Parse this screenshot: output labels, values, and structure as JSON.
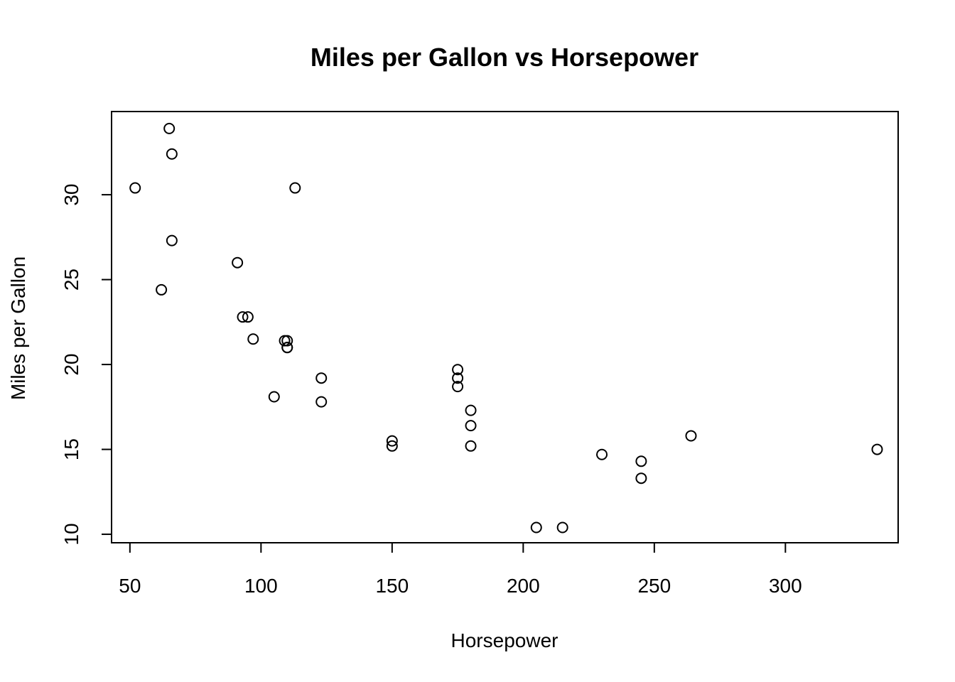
{
  "chart_data": {
    "type": "scatter",
    "title": "Miles per Gallon vs Horsepower",
    "xlabel": "Horsepower",
    "ylabel": "Miles per Gallon",
    "xlim": [
      43,
      343
    ],
    "ylim": [
      9.5,
      34.9
    ],
    "x_ticks": [
      50,
      100,
      150,
      200,
      250,
      300
    ],
    "y_ticks": [
      10,
      15,
      20,
      25,
      30
    ],
    "grid": false,
    "legend": "none",
    "points": [
      {
        "x": 110,
        "y": 21.0
      },
      {
        "x": 110,
        "y": 21.0
      },
      {
        "x": 93,
        "y": 22.8
      },
      {
        "x": 110,
        "y": 21.4
      },
      {
        "x": 175,
        "y": 18.7
      },
      {
        "x": 105,
        "y": 18.1
      },
      {
        "x": 245,
        "y": 14.3
      },
      {
        "x": 62,
        "y": 24.4
      },
      {
        "x": 95,
        "y": 22.8
      },
      {
        "x": 123,
        "y": 19.2
      },
      {
        "x": 123,
        "y": 17.8
      },
      {
        "x": 180,
        "y": 16.4
      },
      {
        "x": 180,
        "y": 17.3
      },
      {
        "x": 180,
        "y": 15.2
      },
      {
        "x": 205,
        "y": 10.4
      },
      {
        "x": 215,
        "y": 10.4
      },
      {
        "x": 230,
        "y": 14.7
      },
      {
        "x": 66,
        "y": 32.4
      },
      {
        "x": 52,
        "y": 30.4
      },
      {
        "x": 65,
        "y": 33.9
      },
      {
        "x": 97,
        "y": 21.5
      },
      {
        "x": 150,
        "y": 15.5
      },
      {
        "x": 150,
        "y": 15.2
      },
      {
        "x": 245,
        "y": 13.3
      },
      {
        "x": 175,
        "y": 19.2
      },
      {
        "x": 66,
        "y": 27.3
      },
      {
        "x": 91,
        "y": 26.0
      },
      {
        "x": 113,
        "y": 30.4
      },
      {
        "x": 264,
        "y": 15.8
      },
      {
        "x": 175,
        "y": 19.7
      },
      {
        "x": 335,
        "y": 15.0
      },
      {
        "x": 109,
        "y": 21.4
      }
    ]
  }
}
